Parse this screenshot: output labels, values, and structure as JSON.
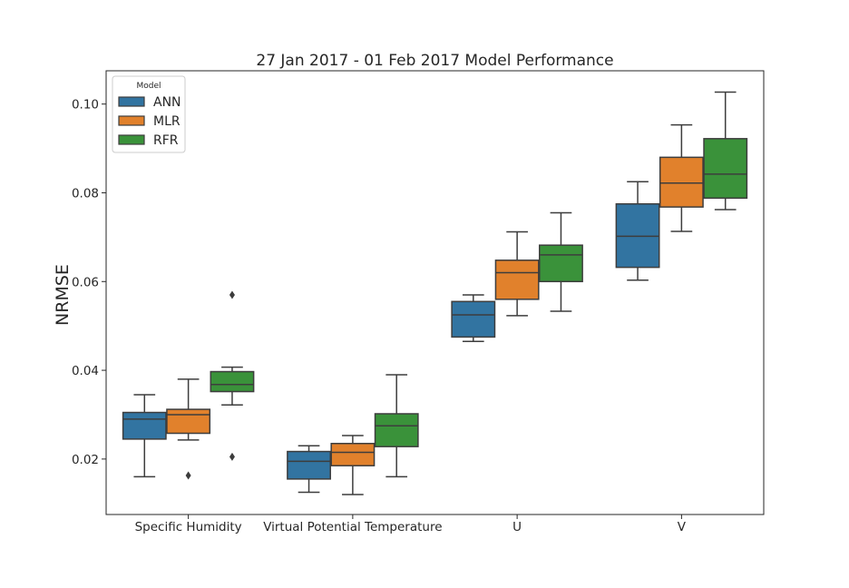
{
  "chart_data": {
    "type": "box",
    "title": "27 Jan 2017 - 01 Feb 2017 Model Performance",
    "xlabel": "",
    "ylabel": "NRMSE",
    "ylim": [
      0.0075,
      0.1075
    ],
    "yticks": [
      0.02,
      0.04,
      0.06,
      0.08,
      0.1
    ],
    "ytick_labels": [
      "0.02",
      "0.04",
      "0.06",
      "0.08",
      "0.10"
    ],
    "grid": false,
    "legend": {
      "title": "Model",
      "position": "top-left"
    },
    "categories": [
      "Specific Humidity",
      "Virtual Potential Temperature",
      "U",
      "V"
    ],
    "series": [
      {
        "name": "ANN",
        "color": "#3274a1",
        "boxes": [
          {
            "whisker_low": 0.016,
            "q1": 0.0245,
            "median": 0.029,
            "q3": 0.0305,
            "whisker_high": 0.0345,
            "outliers": []
          },
          {
            "whisker_low": 0.0125,
            "q1": 0.0155,
            "median": 0.0195,
            "q3": 0.0217,
            "whisker_high": 0.023,
            "outliers": []
          },
          {
            "whisker_low": 0.0465,
            "q1": 0.0475,
            "median": 0.0525,
            "q3": 0.0555,
            "whisker_high": 0.057,
            "outliers": []
          },
          {
            "whisker_low": 0.0603,
            "q1": 0.0632,
            "median": 0.0702,
            "q3": 0.0775,
            "whisker_high": 0.0825,
            "outliers": []
          }
        ]
      },
      {
        "name": "MLR",
        "color": "#e1812c",
        "boxes": [
          {
            "whisker_low": 0.0243,
            "q1": 0.0258,
            "median": 0.03,
            "q3": 0.0312,
            "whisker_high": 0.038,
            "outliers": [
              0.0163
            ]
          },
          {
            "whisker_low": 0.012,
            "q1": 0.0185,
            "median": 0.0215,
            "q3": 0.0235,
            "whisker_high": 0.0253,
            "outliers": []
          },
          {
            "whisker_low": 0.0523,
            "q1": 0.056,
            "median": 0.062,
            "q3": 0.0648,
            "whisker_high": 0.0712,
            "outliers": []
          },
          {
            "whisker_low": 0.0713,
            "q1": 0.0768,
            "median": 0.0822,
            "q3": 0.088,
            "whisker_high": 0.0953,
            "outliers": []
          }
        ]
      },
      {
        "name": "RFR",
        "color": "#3a923a",
        "boxes": [
          {
            "whisker_low": 0.0322,
            "q1": 0.0352,
            "median": 0.0368,
            "q3": 0.0397,
            "whisker_high": 0.0407,
            "outliers": [
              0.057,
              0.0205
            ]
          },
          {
            "whisker_low": 0.016,
            "q1": 0.0228,
            "median": 0.0275,
            "q3": 0.0302,
            "whisker_high": 0.039,
            "outliers": []
          },
          {
            "whisker_low": 0.0533,
            "q1": 0.06,
            "median": 0.066,
            "q3": 0.0682,
            "whisker_high": 0.0755,
            "outliers": []
          },
          {
            "whisker_low": 0.0762,
            "q1": 0.0788,
            "median": 0.0842,
            "q3": 0.0922,
            "whisker_high": 0.1027,
            "outliers": []
          }
        ]
      }
    ]
  }
}
